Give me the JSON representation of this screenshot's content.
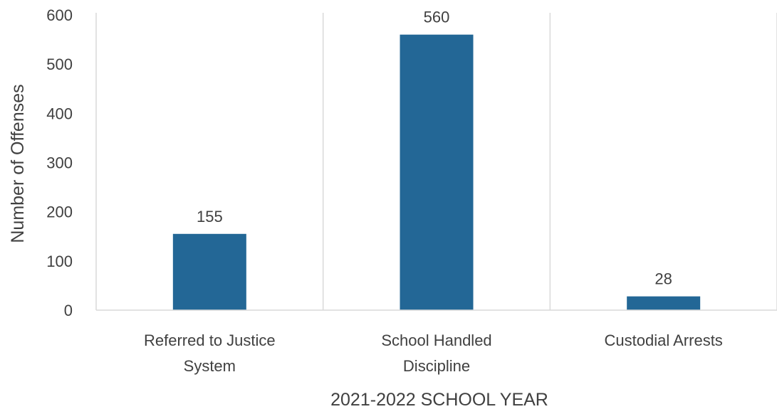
{
  "chart_data": {
    "type": "bar",
    "categories": [
      [
        "Referred to Justice",
        "System"
      ],
      [
        "School Handled",
        "Discipline"
      ],
      [
        "Custodial Arrests"
      ]
    ],
    "values": [
      155,
      560,
      28
    ],
    "data_labels": [
      "155",
      "560",
      "28"
    ],
    "title": "",
    "xlabel": "2021-2022 SCHOOL YEAR",
    "ylabel": "Number of Offenses",
    "ylim": [
      0,
      600
    ],
    "yticks": [
      0,
      100,
      200,
      300,
      400,
      500,
      600
    ],
    "grid": "vertical category separators",
    "legend": "none",
    "bar_color": "#236796"
  }
}
